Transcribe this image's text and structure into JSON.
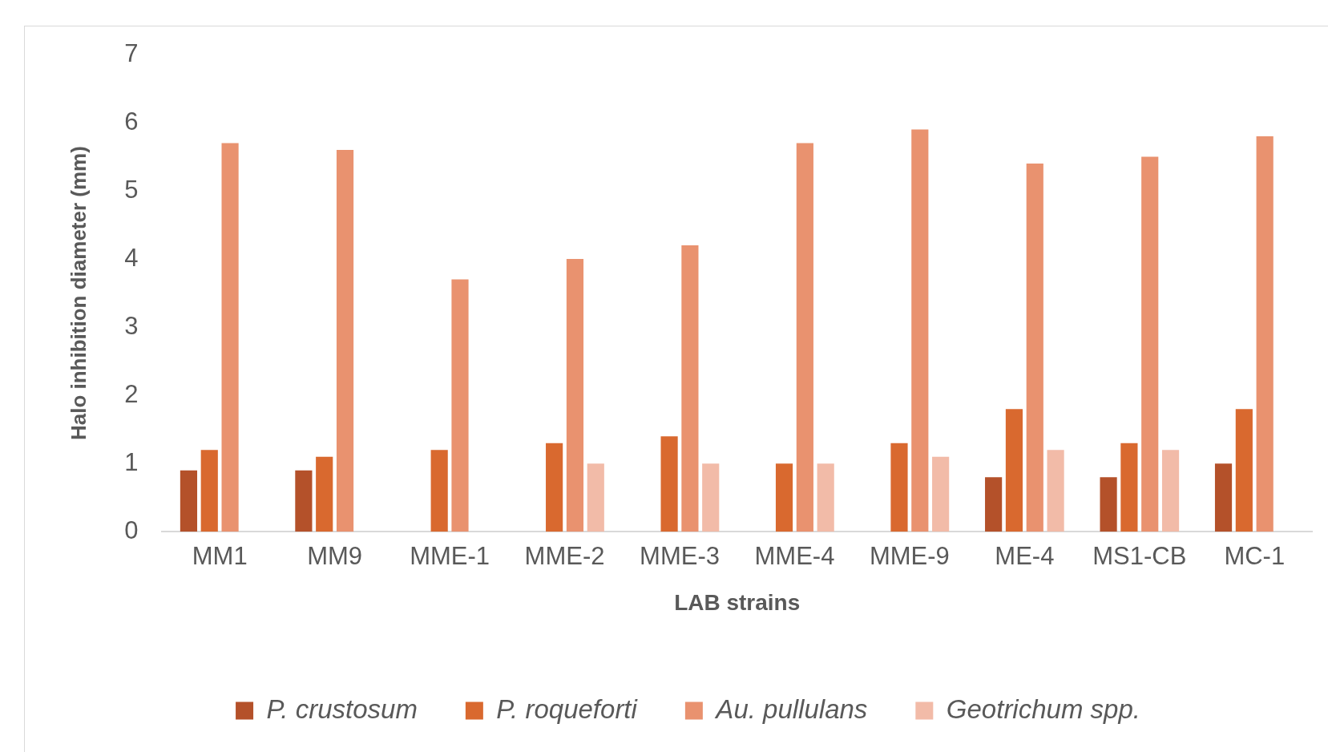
{
  "chart_data": {
    "type": "bar",
    "xlabel": "LAB strains",
    "ylabel": "Halo inhibition diameter (mm)",
    "categories": [
      "MM1",
      "MM9",
      "MME-1",
      "MME-2",
      "MME-3",
      "MME-4",
      "MME-9",
      "ME-4",
      "MS1-CB",
      "MC-1"
    ],
    "series": [
      {
        "name": "P. crustosum",
        "color": "#b4512a",
        "values": [
          0.9,
          0.9,
          0,
          0,
          0,
          0,
          0,
          0.8,
          0.8,
          1.0
        ]
      },
      {
        "name": "P. roqueforti",
        "color": "#d9692f",
        "values": [
          1.2,
          1.1,
          1.2,
          1.3,
          1.4,
          1.0,
          1.3,
          1.8,
          1.3,
          1.8
        ]
      },
      {
        "name": "Au. pullulans",
        "color": "#e9926f",
        "values": [
          5.7,
          5.6,
          3.7,
          4.0,
          4.2,
          5.7,
          5.9,
          5.4,
          5.5,
          5.8
        ]
      },
      {
        "name": "Geotrichum spp.",
        "color": "#f2bba8",
        "values": [
          0,
          0,
          0,
          1.0,
          1.0,
          1.0,
          1.1,
          1.2,
          1.2,
          0
        ]
      }
    ],
    "ylim": [
      0,
      7
    ],
    "yticks": [
      0,
      1,
      2,
      3,
      4,
      5,
      6,
      7
    ],
    "grid": false,
    "legend": "bottom"
  }
}
